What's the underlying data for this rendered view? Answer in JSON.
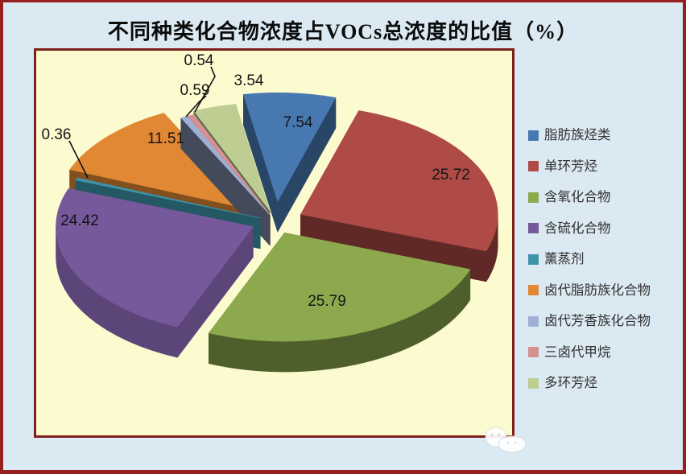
{
  "title": "不同种类化合物浓度占VOCs总浓度的比值（%）",
  "colors": {
    "page_background": "#dbe9f3",
    "plot_background": "#fcfacf",
    "frame_border": "#96201e",
    "plot_border": "#7c201c",
    "title_text": "#0c0c0c",
    "legend_text": "#333333",
    "data_label_text": "#141414"
  },
  "chart_data": {
    "type": "pie",
    "style": "3d-exploded",
    "title": "不同种类化合物浓度占VOCs总浓度的比值（%）",
    "unit": "%",
    "legend_position": "right",
    "data_labels": "value, 2 decimals",
    "series": [
      {
        "label": "脂肪族烃类",
        "value": 7.54,
        "color": "#4878B0"
      },
      {
        "label": "单环芳烃",
        "value": 25.72,
        "color": "#AF4B46"
      },
      {
        "label": "含氧化合物",
        "value": 25.79,
        "color": "#8CA94E"
      },
      {
        "label": "含硫化合物",
        "value": 24.42,
        "color": "#75599B"
      },
      {
        "label": "薰蒸剂",
        "value": 0.36,
        "color": "#3E93A8"
      },
      {
        "label": "卤代脂肪族化合物",
        "value": 11.51,
        "color": "#E08833"
      },
      {
        "label": "卤代芳香族化合物",
        "value": 0.59,
        "color": "#9FAFD4"
      },
      {
        "label": "三卤代甲烷",
        "value": 0.54,
        "color": "#D49190"
      },
      {
        "label": "多环芳烃",
        "value": 3.54,
        "color": "#BECD92"
      }
    ]
  }
}
